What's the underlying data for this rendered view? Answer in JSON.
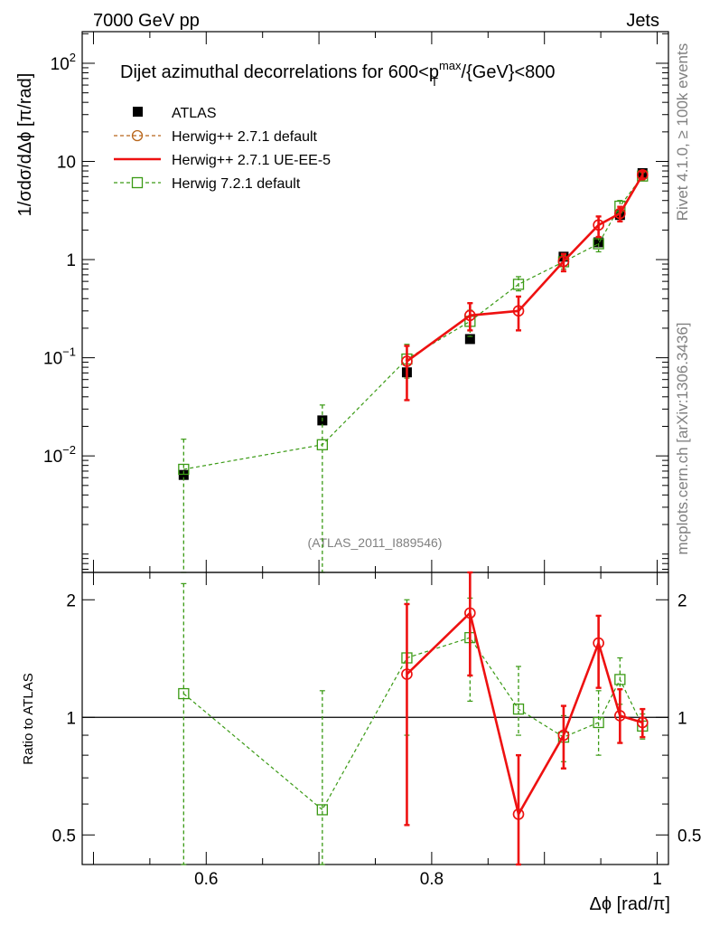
{
  "header": {
    "left": "7000 GeV pp",
    "right": "Jets"
  },
  "side_labels": {
    "rivet": "Rivet 4.1.0, ≥ 100k events",
    "mcplots": "mcplots.cern.ch [arXiv:1306.3436]"
  },
  "chart_data": [
    {
      "type": "scatter",
      "title": "Dijet azimuthal decorrelations for 600<p_T^max/{GeV}<800",
      "title_parts": {
        "pre": "Dijet azimuthal decorrelations for 600<p",
        "sup": "max",
        "sub": "T",
        "post": "/{GeV}<800"
      },
      "ylabel": "1/σdσ/dΔϕ [π/rad]",
      "yscale": "log",
      "ylim": [
        0.00065,
        210
      ],
      "xlim": [
        0.49,
        1.01
      ],
      "yticks": [
        {
          "v": 0.01,
          "m": "10",
          "e": "−2"
        },
        {
          "v": 0.1,
          "m": "10",
          "e": "−1"
        },
        {
          "v": 1,
          "m": "1",
          "e": ""
        },
        {
          "v": 10,
          "m": "10",
          "e": ""
        },
        {
          "v": 100,
          "m": "10",
          "e": "2"
        }
      ],
      "watermark": "(ATLAS_2011_I889546)",
      "legend_position": "top-left",
      "series": [
        {
          "name": "ATLAS",
          "style": "data",
          "color": "#000000",
          "x": [
            0.58,
            0.703,
            0.778,
            0.834,
            0.917,
            0.948,
            0.967,
            0.987
          ],
          "y": [
            0.0064,
            0.023,
            0.071,
            0.155,
            1.07,
            1.5,
            2.85,
            7.6
          ],
          "err_lo": [
            0.0006,
            0.0015,
            0.004,
            0.008,
            0.05,
            0.08,
            0.15,
            0.3
          ],
          "err_hi": [
            0.0006,
            0.0015,
            0.004,
            0.008,
            0.05,
            0.08,
            0.15,
            0.3
          ]
        },
        {
          "name": "Herwig++ 2.7.1 default",
          "style": "circle-dashed",
          "color": "#b8651a",
          "x": [
            0.778,
            0.834,
            0.877,
            0.917,
            0.948,
            0.967,
            0.987
          ],
          "y": [
            0.092,
            0.27,
            0.3,
            0.96,
            2.25,
            2.95,
            7.3
          ],
          "err_lo": [
            0.055,
            0.08,
            0.11,
            0.2,
            0.55,
            0.5,
            0.6
          ],
          "err_hi": [
            0.04,
            0.09,
            0.12,
            0.18,
            0.5,
            0.5,
            0.6
          ]
        },
        {
          "name": "Herwig++ 2.7.1 UE-EE-5",
          "style": "line-solid",
          "color": "#ee1111",
          "x": [
            0.778,
            0.834,
            0.877,
            0.917,
            0.948,
            0.967,
            0.987
          ],
          "y": [
            0.092,
            0.27,
            0.3,
            0.96,
            2.25,
            2.95,
            7.3
          ],
          "err_lo": [
            0.055,
            0.08,
            0.11,
            0.2,
            0.55,
            0.5,
            0.6
          ],
          "err_hi": [
            0.04,
            0.09,
            0.12,
            0.18,
            0.5,
            0.5,
            0.6
          ]
        },
        {
          "name": "Herwig 7.2.1 default",
          "style": "square-dashed",
          "color": "#3a9a14",
          "x": [
            0.58,
            0.703,
            0.778,
            0.834,
            0.877,
            0.917,
            0.948,
            0.967,
            0.987
          ],
          "y": [
            0.0073,
            0.013,
            0.097,
            0.235,
            0.56,
            0.95,
            1.45,
            3.5,
            7.1
          ],
          "err_lo": [
            0.0071,
            0.0129,
            0.035,
            0.07,
            0.08,
            0.15,
            0.25,
            0.5,
            0.6
          ],
          "err_hi": [
            0.0075,
            0.02,
            0.04,
            0.07,
            0.11,
            0.15,
            0.25,
            0.5,
            0.6
          ]
        }
      ]
    },
    {
      "type": "scatter",
      "title": "",
      "xlabel": "Δϕ [rad/π]",
      "ylabel": "Ratio to ATLAS",
      "yscale": "log",
      "ylim": [
        0.42,
        2.35
      ],
      "xlim": [
        0.49,
        1.01
      ],
      "yticks": [
        {
          "v": 0.5,
          "label": "0.5"
        },
        {
          "v": 1,
          "label": "1"
        },
        {
          "v": 2,
          "label": "2"
        }
      ],
      "xticks": [
        {
          "v": 0.6,
          "label": "0.6"
        },
        {
          "v": 0.8,
          "label": "0.8"
        },
        {
          "v": 1.0,
          "label": "1"
        }
      ],
      "reference_line": 1,
      "series": [
        {
          "name": "Herwig++ 2.7.1 default",
          "style": "circle-dashed",
          "color": "#b8651a",
          "x": [
            0.778,
            0.834,
            0.877,
            0.917,
            0.948,
            0.967,
            0.987
          ],
          "y": [
            1.29,
            1.85,
            0.565,
            0.9,
            1.55,
            1.01,
            0.97
          ],
          "err_lo": [
            0.76,
            0.57,
            0.215,
            0.16,
            0.36,
            0.15,
            0.08
          ],
          "err_hi": [
            0.66,
            0.55,
            0.235,
            0.17,
            0.27,
            0.17,
            0.08
          ]
        },
        {
          "name": "Herwig++ 2.7.1 UE-EE-5",
          "style": "line-solid",
          "color": "#ee1111",
          "x": [
            0.778,
            0.834,
            0.877,
            0.917,
            0.948,
            0.967,
            0.987
          ],
          "y": [
            1.29,
            1.85,
            0.565,
            0.9,
            1.55,
            1.01,
            0.97
          ],
          "err_lo": [
            0.76,
            0.57,
            0.215,
            0.16,
            0.36,
            0.15,
            0.08
          ],
          "err_hi": [
            0.66,
            0.55,
            0.235,
            0.17,
            0.27,
            0.17,
            0.08
          ]
        },
        {
          "name": "Herwig 7.2.1 default",
          "style": "square-dashed",
          "color": "#3a9a14",
          "x": [
            0.58,
            0.703,
            0.778,
            0.834,
            0.877,
            0.917,
            0.948,
            0.967,
            0.987
          ],
          "y": [
            1.15,
            0.58,
            1.42,
            1.6,
            1.05,
            0.89,
            0.97,
            1.25,
            0.95
          ],
          "err_lo": [
            1.15,
            0.58,
            0.52,
            0.5,
            0.15,
            0.12,
            0.17,
            0.17,
            0.07
          ],
          "err_hi": [
            1.05,
            0.59,
            0.58,
            0.42,
            0.3,
            0.12,
            0.2,
            0.17,
            0.07
          ]
        }
      ]
    }
  ]
}
